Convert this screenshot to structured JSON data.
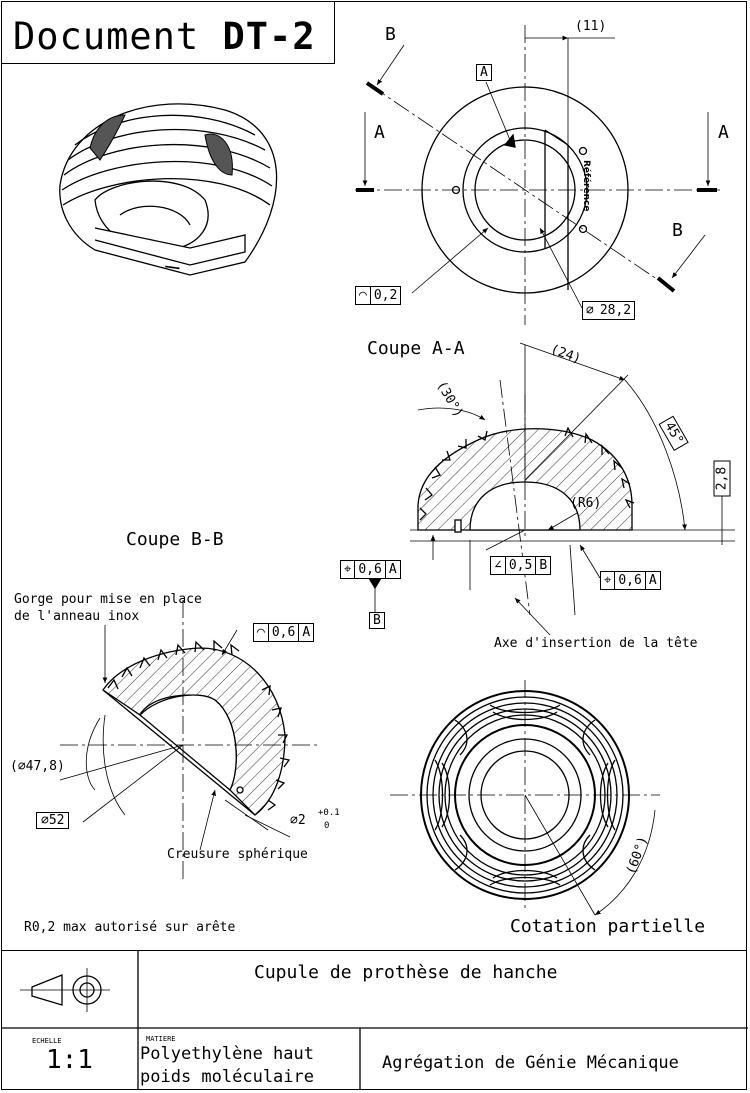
{
  "document": {
    "title_prefix": "Document",
    "title_code": "DT-2"
  },
  "views": {
    "section_aa": "Coupe A-A",
    "section_bb": "Coupe B-B",
    "partial_dims": "Cotation partielle"
  },
  "top_view": {
    "cut_a_left": "A",
    "cut_a_right": "A",
    "cut_b_top": "B",
    "cut_b_bottom": "B",
    "datum_a": "A",
    "dim_11": "(11)",
    "engraving": "Référence",
    "tol_profile": {
      "symbol": "◠",
      "value": "0,2"
    },
    "dia_28": {
      "symbol": "⌀",
      "value": "28,2"
    }
  },
  "section_aa": {
    "dim_24": "(24)",
    "dim_30": "(30°)",
    "dim_45": "45°",
    "dim_28": "2,8",
    "dim_r6": "(R6)",
    "tol_position_left": {
      "symbol": "⌖",
      "value": "0,6",
      "datum": "A"
    },
    "datum_b": "B",
    "tol_angularity": {
      "symbol": "∠",
      "value": "0,5",
      "datum": "B"
    },
    "tol_position_right": {
      "symbol": "⌖",
      "value": "0,6",
      "datum": "A"
    },
    "axis_label": "Axe d'insertion de la tête"
  },
  "section_bb": {
    "groove_note_line1": "Gorge pour mise en place",
    "groove_note_line2": "de l'anneau inox",
    "tol_profile": {
      "symbol": "◠",
      "value": "0,6",
      "datum": "A"
    },
    "dia_478": "(⌀47,8)",
    "dia_52": "⌀52",
    "dia_2": "⌀2",
    "dia_2_tol_upper": "+0.1",
    "dia_2_tol_lower": "0",
    "spherical_hollow": "Creusure sphérique"
  },
  "partial_view": {
    "dim_60": "(60°)"
  },
  "notes": {
    "edge_radius": "R0,2 max autorisé sur arête"
  },
  "cartouche": {
    "title": "Cupule de prothèse de hanche",
    "scale_caption": "ECHELLE",
    "scale_value": "1:1",
    "material_caption": "MATIERE",
    "material_line1": "Polyethylène haut",
    "material_line2": "poids moléculaire",
    "institution": "Agrégation de Génie Mécanique"
  }
}
